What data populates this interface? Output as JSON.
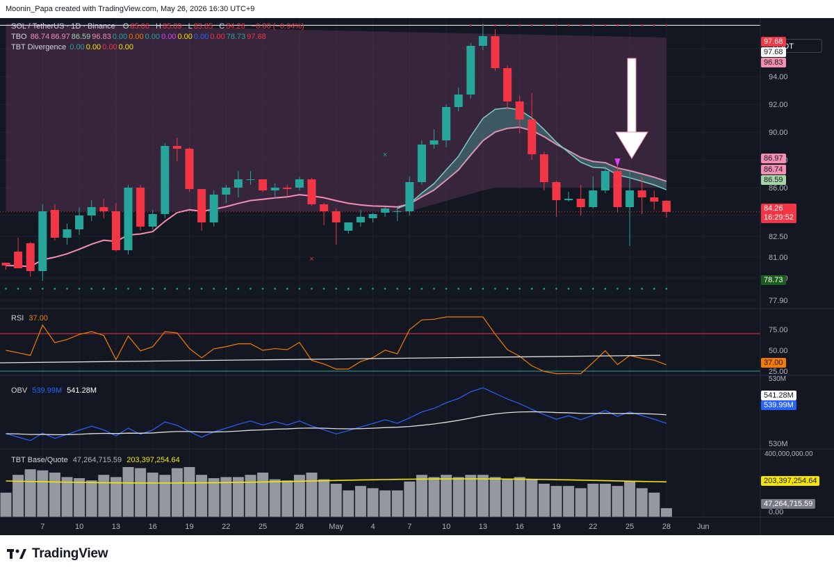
{
  "header": {
    "text": "Moonin_Papa created with TradingView.com, May 26, 2026 16:30 UTC+9"
  },
  "legend": {
    "symbol": "SOL / TetherUS · 1D · Binance",
    "o_label": "O",
    "o": "85.06",
    "h_label": "H",
    "h": "85.09",
    "l_label": "L",
    "l": "83.85",
    "c_label": "C",
    "c": "84.26",
    "change": "−0.80 (−0.94%)",
    "tbo_label": "TBO",
    "tbo_values": [
      "86.74",
      "86.97",
      "86.59",
      "96.83",
      "0.00",
      "0.00",
      "0.00",
      "0.00",
      "0.00",
      "0.00",
      "0.00",
      "78.73",
      "97.68"
    ],
    "div_label": "TBT Divergence",
    "div_values": [
      "0.00",
      "0.00",
      "0.00",
      "0.00"
    ]
  },
  "currency": "USDT",
  "colors": {
    "up": "#26a69a",
    "down": "#f23645",
    "bg": "#131722",
    "pink": "#f48fb1",
    "rsi": "#f57c00",
    "obv": "#2962ff"
  },
  "price_axis": {
    "ticks": [
      "96.00",
      "94.00",
      "92.00",
      "90.00",
      "88.00",
      "86.00",
      "84.00",
      "82.50",
      "81.00",
      "79.50",
      "77.90"
    ],
    "tags": {
      "p9768a": "97.68",
      "p9768b": "97.68",
      "p9683": "96.83",
      "p8697": "86.97",
      "p8674": "86.74",
      "p8659": "86.59",
      "last": "84.26",
      "countdown": "16:29:52",
      "p7873": "78.73"
    }
  },
  "rsi": {
    "title": "RSI",
    "value": "37.00",
    "ticks": [
      "75.00",
      "50.00",
      "25.00"
    ],
    "tag": "37.00"
  },
  "obv": {
    "title": "OBV",
    "v1": "539.99M",
    "v2": "541.28M",
    "ticks": [
      "530M",
      "530M"
    ],
    "tag1": "541.28M",
    "tag2": "539.99M"
  },
  "vol": {
    "title": "TBT Base/Quote",
    "v1": "47,264,715.59",
    "v2": "203,397,254.64",
    "ticks": [
      "400,000,000.00",
      "0.00"
    ],
    "tag1": "203,397,254.64",
    "tag2": "47,264,715.59"
  },
  "time_axis": [
    "7",
    "10",
    "13",
    "16",
    "19",
    "22",
    "25",
    "28",
    "May",
    "4",
    "7",
    "10",
    "13",
    "16",
    "19",
    "22",
    "25",
    "28",
    "Jun"
  ],
  "footer": {
    "brand": "TradingView"
  },
  "chart_data": {
    "type": "candlestick",
    "symbol": "SOL / TetherUS",
    "interval": "1D",
    "exchange": "Binance",
    "ohlc": [
      [
        80.6,
        80.6,
        80.1,
        80.4
      ],
      [
        81.4,
        82.4,
        80.3,
        80.2
      ],
      [
        82.0,
        82.1,
        79.6,
        80.0
      ],
      [
        80.0,
        84.8,
        79.3,
        84.3
      ],
      [
        84.4,
        84.8,
        82.2,
        82.4
      ],
      [
        82.4,
        83.4,
        81.9,
        83.0
      ],
      [
        83.0,
        84.6,
        82.6,
        84.0
      ],
      [
        84.0,
        85.1,
        83.6,
        84.6
      ],
      [
        84.6,
        85.2,
        83.8,
        84.3
      ],
      [
        84.3,
        84.9,
        81.4,
        81.5
      ],
      [
        81.5,
        86.2,
        81.2,
        86.0
      ],
      [
        86.0,
        86.2,
        82.9,
        83.2
      ],
      [
        83.2,
        84.4,
        83.0,
        84.1
      ],
      [
        84.1,
        89.2,
        83.8,
        89.0
      ],
      [
        89.0,
        89.6,
        87.9,
        88.8
      ],
      [
        88.8,
        88.9,
        85.7,
        85.9
      ],
      [
        85.9,
        85.9,
        82.9,
        83.5
      ],
      [
        83.5,
        85.8,
        83.2,
        85.5
      ],
      [
        85.5,
        86.2,
        84.9,
        86.0
      ],
      [
        86.0,
        87.2,
        85.3,
        86.6
      ],
      [
        86.6,
        87.2,
        86.2,
        86.6
      ],
      [
        86.6,
        86.6,
        85.7,
        85.8
      ],
      [
        85.8,
        86.3,
        85.2,
        86.0
      ],
      [
        86.0,
        86.2,
        85.4,
        85.9
      ],
      [
        86.0,
        86.8,
        85.8,
        86.6
      ],
      [
        86.6,
        86.7,
        84.7,
        84.8
      ],
      [
        84.8,
        84.9,
        83.3,
        84.3
      ],
      [
        84.3,
        84.5,
        81.9,
        83.5
      ],
      [
        82.9,
        83.5,
        82.7,
        83.5
      ],
      [
        83.5,
        84.4,
        83.2,
        83.9
      ],
      [
        83.8,
        84.2,
        83.5,
        84.1
      ],
      [
        84.2,
        84.6,
        83.9,
        84.5
      ],
      [
        84.3,
        84.6,
        83.6,
        84.3
      ],
      [
        84.3,
        86.8,
        84.0,
        86.4
      ],
      [
        86.4,
        89.4,
        86.2,
        89.1
      ],
      [
        89.1,
        90.2,
        88.8,
        89.4
      ],
      [
        89.4,
        92.0,
        88.9,
        91.8
      ],
      [
        91.8,
        93.2,
        91.5,
        92.7
      ],
      [
        92.7,
        96.4,
        92.4,
        96.2
      ],
      [
        96.2,
        97.8,
        95.9,
        96.9
      ],
      [
        96.9,
        97.4,
        94.4,
        94.6
      ],
      [
        94.6,
        94.8,
        91.6,
        92.2
      ],
      [
        92.2,
        92.6,
        89.9,
        90.9
      ],
      [
        90.9,
        92.8,
        88.0,
        88.4
      ],
      [
        88.4,
        88.6,
        85.8,
        86.4
      ],
      [
        86.4,
        86.5,
        83.9,
        85.1
      ],
      [
        85.1,
        85.7,
        85.0,
        85.2
      ],
      [
        85.2,
        86.2,
        84.0,
        84.6
      ],
      [
        84.6,
        86.8,
        84.5,
        85.8
      ],
      [
        85.8,
        87.5,
        85.6,
        87.2
      ],
      [
        87.2,
        87.6,
        84.2,
        84.6
      ],
      [
        84.6,
        87.2,
        81.8,
        85.8
      ],
      [
        85.8,
        86.8,
        84.1,
        85.3
      ],
      [
        85.3,
        85.8,
        84.4,
        85.0
      ],
      [
        85.06,
        85.09,
        83.85,
        84.26
      ]
    ],
    "current_price": 84.26,
    "ylim": [
      77.3,
      98.2
    ],
    "rsi_ylim": [
      20,
      100
    ],
    "rsi_overbought": 70,
    "rsi_oversold": 25
  }
}
